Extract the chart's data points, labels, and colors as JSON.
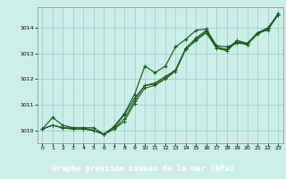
{
  "title": "Graphe pression niveau de la mer (hPa)",
  "background_color": "#cceee8",
  "plot_bg_color": "#cceee8",
  "label_bg_color": "#2d6b2d",
  "label_text_color": "#ffffff",
  "grid_color": "#99cccc",
  "line_color": "#1a5c1a",
  "xlim": [
    -0.5,
    23.5
  ],
  "ylim": [
    1009.5,
    1014.8
  ],
  "yticks": [
    1010,
    1011,
    1012,
    1013,
    1014
  ],
  "xticks": [
    0,
    1,
    2,
    3,
    4,
    5,
    6,
    7,
    8,
    9,
    10,
    11,
    12,
    13,
    14,
    15,
    16,
    17,
    18,
    19,
    20,
    21,
    22,
    23
  ],
  "line1": [
    1010.05,
    1010.5,
    1010.2,
    1010.1,
    1010.1,
    1010.1,
    1009.85,
    1010.15,
    1010.65,
    1011.4,
    1012.5,
    1012.25,
    1012.5,
    1013.25,
    1013.55,
    1013.9,
    1013.95,
    1013.3,
    1013.25,
    1013.4,
    1013.35,
    1013.75,
    1013.95,
    1014.55
  ],
  "line2": [
    1010.05,
    1010.2,
    1010.1,
    1010.05,
    1010.05,
    1010.0,
    1009.85,
    1010.05,
    1010.45,
    1011.15,
    1011.75,
    1011.8,
    1012.05,
    1012.35,
    1013.2,
    1013.55,
    1013.85,
    1013.25,
    1013.15,
    1013.5,
    1013.35,
    1013.8,
    1013.95,
    1014.5
  ],
  "line3": [
    1010.05,
    1010.2,
    1010.1,
    1010.1,
    1010.1,
    1010.0,
    1009.85,
    1010.1,
    1010.6,
    1011.25,
    1011.75,
    1011.85,
    1012.1,
    1012.35,
    1013.2,
    1013.6,
    1013.9,
    1013.2,
    1013.15,
    1013.5,
    1013.4,
    1013.8,
    1014.0,
    1014.5
  ],
  "line4": [
    1010.05,
    1010.2,
    1010.1,
    1010.05,
    1010.05,
    1010.0,
    1009.85,
    1010.05,
    1010.35,
    1011.05,
    1011.65,
    1011.75,
    1012.0,
    1012.3,
    1013.15,
    1013.5,
    1013.8,
    1013.2,
    1013.1,
    1013.45,
    1013.35,
    1013.8,
    1013.9,
    1014.5
  ]
}
